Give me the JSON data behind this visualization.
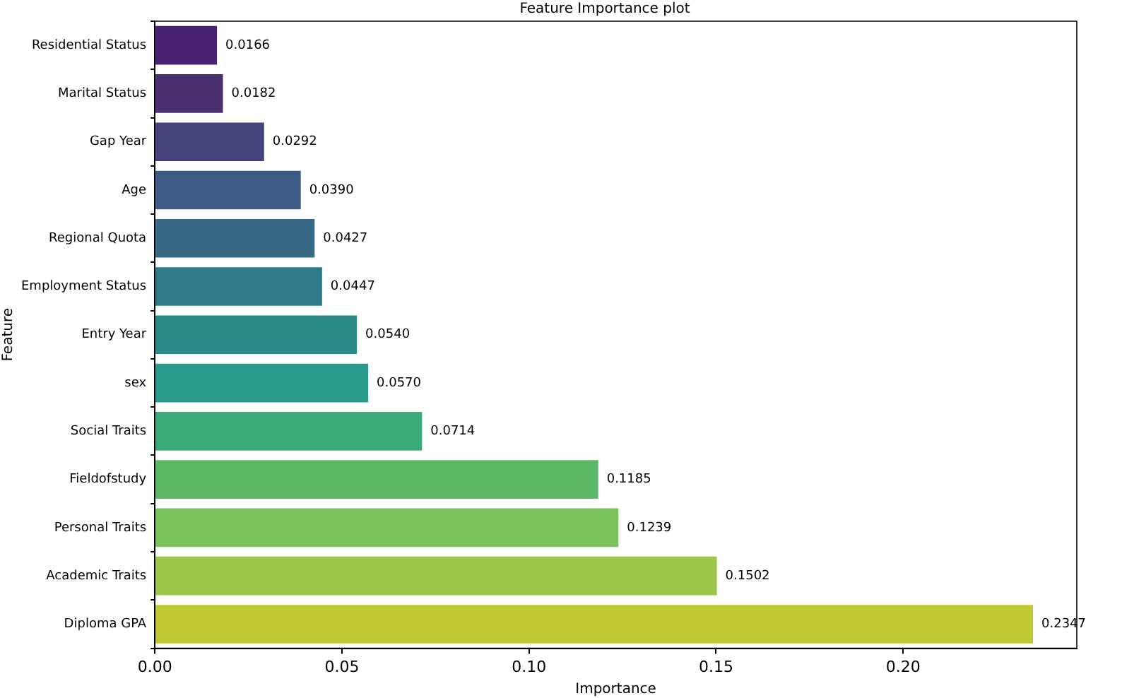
{
  "chart_data": {
    "type": "bar",
    "orientation": "horizontal",
    "title": "Feature Importance plot",
    "xlabel": "Importance",
    "ylabel": "Feature",
    "categories": [
      "Residential Status",
      "Marital Status",
      "Gap Year",
      "Age",
      "Regional Quota",
      "Employment Status",
      "Entry Year",
      "sex",
      "Social Traits",
      "Fieldofstudy",
      "Personal Traits",
      "Academic Traits",
      "Diploma GPA"
    ],
    "values": [
      0.0166,
      0.0182,
      0.0292,
      0.039,
      0.0427,
      0.0447,
      0.054,
      0.057,
      0.0714,
      0.1185,
      0.1239,
      0.1502,
      0.2347
    ],
    "colors": [
      "#482072",
      "#48306f",
      "#45427b",
      "#3d5a85",
      "#376985",
      "#317a88",
      "#2a8a86",
      "#28998a",
      "#3aab78",
      "#5bb867",
      "#7bc25d",
      "#9dc74b",
      "#bec832"
    ],
    "value_labels": [
      "0.0166",
      "0.0182",
      "0.0292",
      "0.0390",
      "0.0427",
      "0.0447",
      "0.0540",
      "0.0570",
      "0.0714",
      "0.1185",
      "0.1239",
      "0.1502",
      "0.2347"
    ],
    "xlim": [
      0,
      0.2464
    ],
    "xticks": [
      {
        "value": 0,
        "label": "0.00"
      },
      {
        "value": 0.05,
        "label": "0.05"
      },
      {
        "value": 0.1,
        "label": "0.10"
      },
      {
        "value": 0.15,
        "label": "0.15"
      },
      {
        "value": 0.2,
        "label": "0.20"
      }
    ],
    "grid": false,
    "legend": false
  }
}
